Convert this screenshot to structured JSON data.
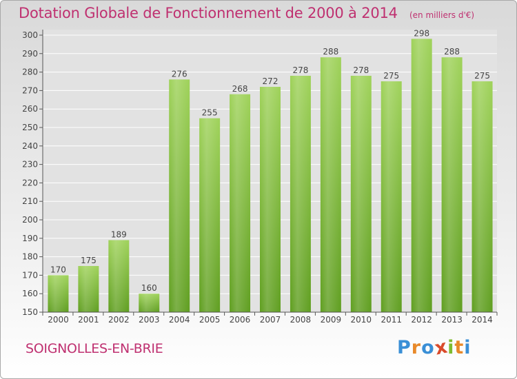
{
  "chart_data": {
    "type": "bar",
    "title": "Dotation Globale de Fonctionnement de 2000 à 2014",
    "subtitle": "(en milliers d'€)",
    "categories": [
      "2000",
      "2001",
      "2002",
      "2003",
      "2004",
      "2005",
      "2006",
      "2007",
      "2008",
      "2009",
      "2010",
      "2011",
      "2012",
      "2013",
      "2014"
    ],
    "values": [
      170,
      175,
      189,
      160,
      276,
      255,
      268,
      272,
      278,
      288,
      278,
      275,
      298,
      288,
      275
    ],
    "ylim": [
      150,
      300
    ],
    "yticks": [
      150,
      160,
      170,
      180,
      190,
      200,
      210,
      220,
      230,
      240,
      250,
      260,
      270,
      280,
      290,
      300
    ],
    "grid": true,
    "bar_color": "#7dc13a"
  },
  "footer": {
    "city": "SOIGNOLLES-EN-BRIE",
    "logo": [
      "P",
      "r",
      "o",
      "x",
      "i",
      "t",
      "i"
    ],
    "logo_colors": [
      "#3a8fd6",
      "#e8892a",
      "#3a8fd6",
      "#d94b2b",
      "#7dbb2f",
      "#e8892a",
      "#3a8fd6"
    ]
  }
}
